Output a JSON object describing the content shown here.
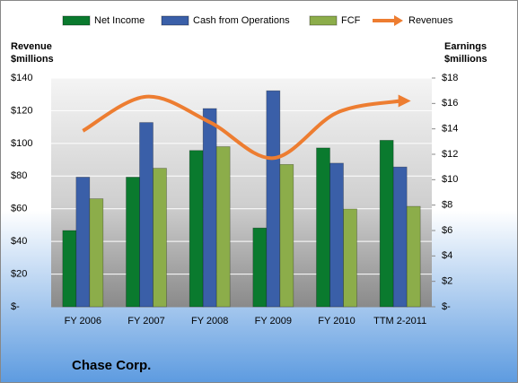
{
  "chart_data": {
    "type": "bar",
    "title": "Chase Corp.",
    "y_label": "Revenue\n$millions",
    "y2_label": "Earnings\n$millions",
    "categories": [
      "FY 2006",
      "FY 2007",
      "FY 2008",
      "FY 2009",
      "FY 2010",
      "TTM 2-2011"
    ],
    "series": [
      {
        "name": "Net Income",
        "color": "#0a7a2e",
        "axis": "y2",
        "values": [
          6.0,
          10.2,
          12.3,
          6.2,
          12.5,
          13.1
        ]
      },
      {
        "name": "Cash from Operations",
        "color": "#3a5fa8",
        "axis": "y2",
        "values": [
          10.2,
          14.5,
          15.6,
          17.0,
          11.3,
          11.0
        ]
      },
      {
        "name": "FCF",
        "color": "#8cad4a",
        "axis": "y2",
        "values": [
          8.5,
          10.9,
          12.6,
          11.2,
          7.7,
          7.9
        ]
      },
      {
        "name": "Revenues",
        "color": "#ed7d31",
        "type": "line",
        "values": [
          107.7,
          128.6,
          113,
          91,
          118.7,
          126
        ]
      }
    ],
    "ylim": [
      0,
      140
    ],
    "yticks": [
      {
        "value": 0,
        "label": "$-"
      },
      {
        "value": 20,
        "label": "$20"
      },
      {
        "value": 40,
        "label": "$40"
      },
      {
        "value": 60,
        "label": "$60"
      },
      {
        "value": 80,
        "label": "$80"
      },
      {
        "value": 100,
        "label": "$100"
      },
      {
        "value": 120,
        "label": "$120"
      },
      {
        "value": 140,
        "label": "$140"
      }
    ],
    "y2lim": [
      0,
      18
    ],
    "y2ticks": [
      {
        "value": 0,
        "label": "$-"
      },
      {
        "value": 2,
        "label": "$2"
      },
      {
        "value": 4,
        "label": "$4"
      },
      {
        "value": 6,
        "label": "$6"
      },
      {
        "value": 8,
        "label": "$8"
      },
      {
        "value": 10,
        "label": "$10"
      },
      {
        "value": 12,
        "label": "$12"
      },
      {
        "value": 14,
        "label": "$14"
      },
      {
        "value": 16,
        "label": "$16"
      },
      {
        "value": 18,
        "label": "$18"
      }
    ],
    "grid": true,
    "legend": "top"
  }
}
